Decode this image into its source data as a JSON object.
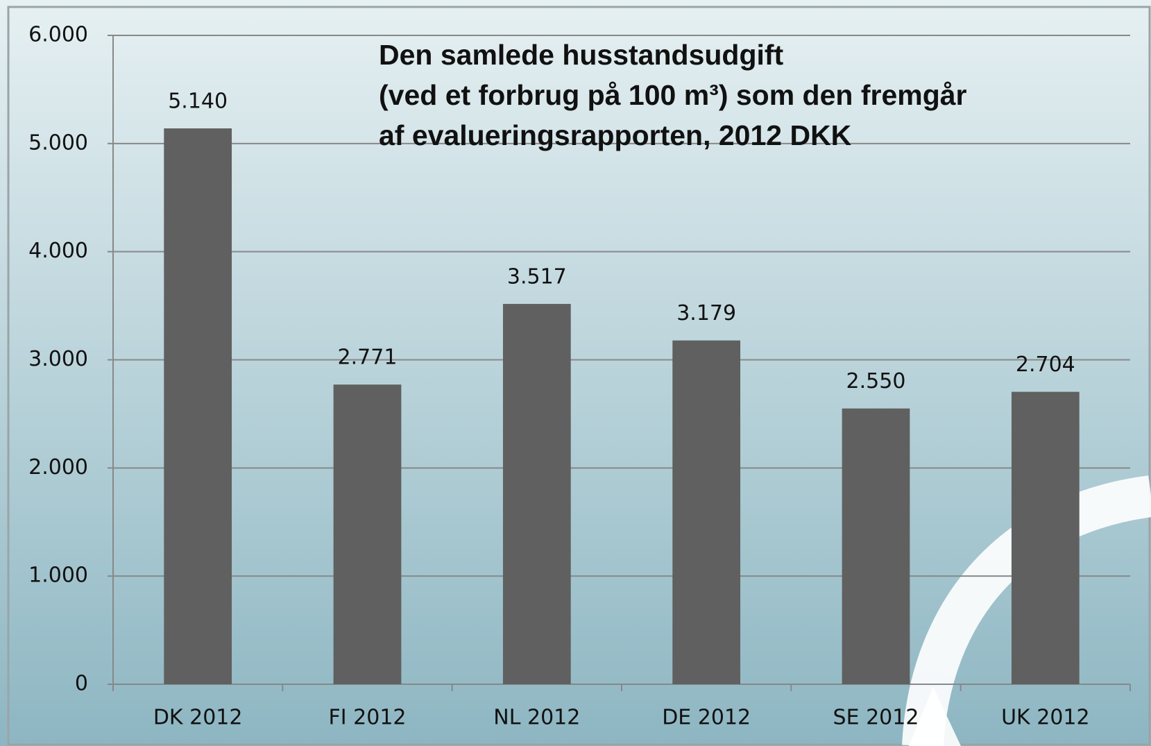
{
  "chart_data": {
    "type": "bar",
    "title": [
      "Den samlede husstandsudgift",
      "(ved et forbrug på 100 m³) som den fremgår",
      "af evalueringsrapporten, 2012 DKK"
    ],
    "categories": [
      "DK 2012",
      "FI 2012",
      "NL 2012",
      "DE 2012",
      "SE 2012",
      "UK 2012"
    ],
    "values": [
      5140,
      2771,
      3517,
      3179,
      2550,
      2704
    ],
    "value_labels": [
      "5.140",
      "2.771",
      "3.517",
      "3.179",
      "2.550",
      "2.704"
    ],
    "color": "#606060",
    "ylim": [
      0,
      6000
    ],
    "yticks": [
      0,
      {
        "value": 1000,
        "label": "1.000"
      },
      {
        "value": 2000,
        "label": "2.000"
      },
      {
        "value": 3000,
        "label": "3.000"
      },
      {
        "value": 4000,
        "label": "4.000"
      },
      {
        "value": 5000,
        "label": "5.000"
      },
      {
        "value": 6000,
        "label": "6.000"
      }
    ],
    "grid": true
  }
}
